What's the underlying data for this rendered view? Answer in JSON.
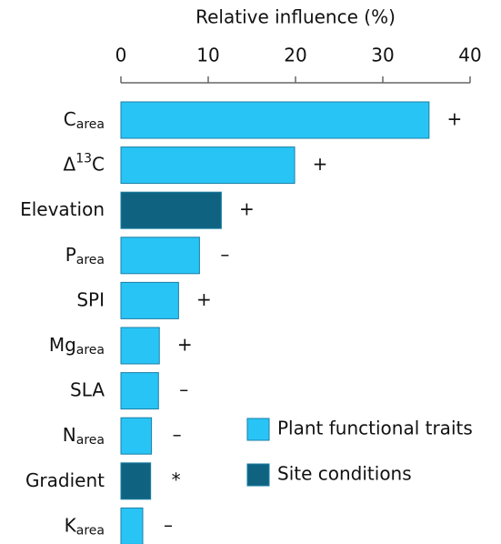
{
  "chart_data": {
    "type": "bar",
    "orientation": "horizontal",
    "xlabel": "Relative influence (%)",
    "categories": [
      [
        {
          "text": "C"
        },
        {
          "text": "area",
          "shift": "sub"
        }
      ],
      [
        {
          "text": "Δ"
        },
        {
          "text": "13",
          "shift": "super"
        },
        {
          "text": "C"
        }
      ],
      [
        {
          "text": "Elevation"
        }
      ],
      [
        {
          "text": "P"
        },
        {
          "text": "area",
          "shift": "sub"
        }
      ],
      [
        {
          "text": "SPI"
        }
      ],
      [
        {
          "text": "Mg"
        },
        {
          "text": "area",
          "shift": "sub"
        }
      ],
      [
        {
          "text": "SLA"
        }
      ],
      [
        {
          "text": "N"
        },
        {
          "text": "area",
          "shift": "sub"
        }
      ],
      [
        {
          "text": "Gradient"
        }
      ],
      [
        {
          "text": "K"
        },
        {
          "text": "area",
          "shift": "sub"
        }
      ]
    ],
    "series": [
      {
        "name": "Plant functional traits",
        "color": "#29c4f6",
        "values": [
          35.3,
          19.9,
          null,
          9.0,
          6.6,
          4.4,
          4.3,
          3.5,
          null,
          2.5
        ]
      },
      {
        "name": "Site conditions",
        "color": "#0f6381",
        "values": [
          null,
          null,
          11.5,
          null,
          null,
          null,
          null,
          null,
          3.4,
          null
        ]
      }
    ],
    "signs": [
      "+",
      "+",
      "+",
      "–",
      "+",
      "+",
      "–",
      "–",
      "*",
      "–"
    ],
    "xlim": [
      0,
      40
    ],
    "xticks": [
      0,
      10,
      20,
      30,
      40
    ]
  }
}
